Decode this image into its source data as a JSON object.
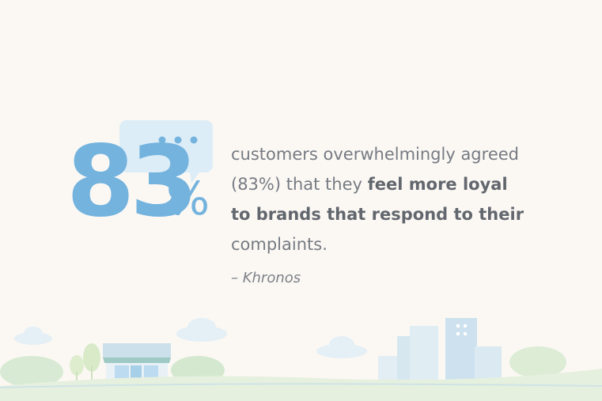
{
  "stat": {
    "number": "83",
    "unit": "%"
  },
  "quote": {
    "lines": [
      [
        {
          "text": "customers overwhelmingly agreed",
          "bold": false
        }
      ],
      [
        {
          "text": "(83%) that they ",
          "bold": false
        },
        {
          "text": "feel more loyal",
          "bold": true
        }
      ],
      [
        {
          "text": "to brands that respond to their",
          "bold": true
        }
      ],
      [
        {
          "text": "complaints.",
          "bold": false
        }
      ]
    ]
  },
  "attribution": "– Khronos"
}
